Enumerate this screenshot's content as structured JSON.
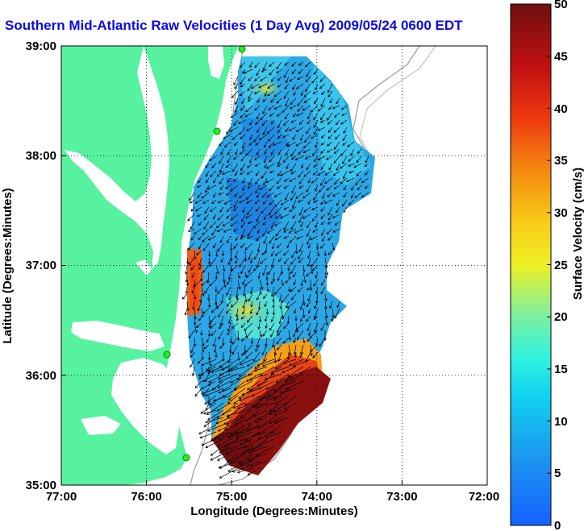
{
  "title": "Southern Mid-Atlantic Raw Velocities (1 Day Avg) 2009/05/24 0600 EDT",
  "x_axis": {
    "label": "Longitude (Degrees:Minutes)",
    "ticks": [
      "77:00",
      "76:00",
      "75:00",
      "74:00",
      "73:00",
      "72:00"
    ]
  },
  "y_axis": {
    "label": "Latitude (Degrees:Minutes)",
    "ticks": [
      "39:00",
      "38:00",
      "37:00",
      "36:00",
      "35:00"
    ]
  },
  "colorbar": {
    "label": "Surface Velocity (cm/s)",
    "ticks": [
      "50",
      "45",
      "40",
      "35",
      "30",
      "25",
      "20",
      "15",
      "10",
      "5",
      "0"
    ],
    "min": 0,
    "max": 50
  },
  "colors": {
    "land": "#56f2a0",
    "title": "#0a0ae6",
    "slow": "#2ba7e6",
    "fast": "#7a0e0e"
  },
  "chart_data": {
    "type": "heatmap",
    "variable": "surface velocity",
    "units": "cm/s",
    "xlim": [
      -77,
      -72
    ],
    "ylim": [
      35,
      39
    ],
    "grid": true,
    "colorbar_range": [
      0,
      50
    ]
  }
}
